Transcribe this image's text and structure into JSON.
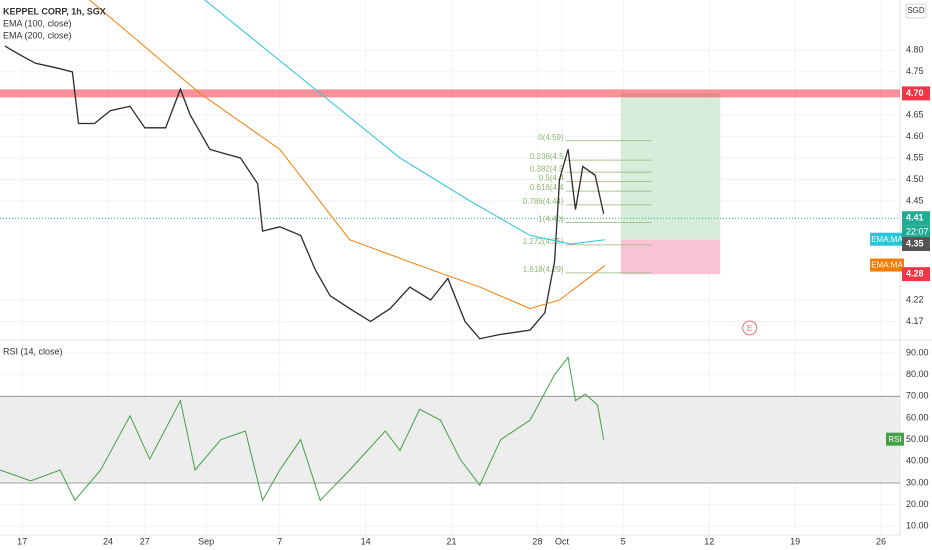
{
  "chart_data": [
    {
      "type": "line",
      "title": "KEPPEL CORP, 1h, SGX",
      "currency": "SGD",
      "xlim": [
        -1.8,
        71.55
      ],
      "ylim": [
        4.127,
        4.917
      ],
      "xticks": [
        {
          "value": 0,
          "label": "17"
        },
        {
          "value": 7,
          "label": "24"
        },
        {
          "value": 10,
          "label": "27"
        },
        {
          "value": 15,
          "label": "Sep"
        },
        {
          "value": 21,
          "label": "7"
        },
        {
          "value": 28,
          "label": "14"
        },
        {
          "value": 35,
          "label": "21"
        },
        {
          "value": 42,
          "label": "28"
        },
        {
          "value": 44,
          "label": "Oct"
        },
        {
          "value": 49,
          "label": "5"
        },
        {
          "value": 56,
          "label": "12"
        },
        {
          "value": 63,
          "label": "19"
        },
        {
          "value": 70,
          "label": "26"
        }
      ],
      "yticks": [
        4.17,
        4.22,
        4.45,
        {
          "value": 4.5,
          "label": "4.50"
        },
        4.55,
        {
          "value": 4.6,
          "label": "4.60"
        },
        4.65,
        4.75,
        {
          "value": 4.8,
          "label": "4.80"
        }
      ],
      "series": [
        {
          "color": "#2b2b2b",
          "x": [
            -1.4,
            -0.2,
            1.1,
            2.7,
            4.1,
            4.6,
            5.9,
            7.2,
            8.8,
            10.0,
            11.7,
            12.9,
            13.7,
            15.3,
            16.5,
            17.8,
            19.2,
            19.6,
            21.0,
            22.7,
            23.9,
            25.1,
            26.7,
            28.4,
            30.0,
            31.6,
            33.3,
            34.7,
            36.1,
            37.3,
            39.0,
            41.4,
            42.6,
            43.4,
            43.8,
            44.5,
            45.1,
            45.7,
            46.7,
            47.4
          ],
          "values": [
            4.81,
            4.79,
            4.77,
            4.76,
            4.75,
            4.63,
            4.63,
            4.66,
            4.67,
            4.62,
            4.62,
            4.71,
            4.65,
            4.57,
            4.56,
            4.55,
            4.49,
            4.38,
            4.39,
            4.37,
            4.29,
            4.23,
            4.2,
            4.17,
            4.2,
            4.25,
            4.22,
            4.27,
            4.17,
            4.13,
            4.14,
            4.15,
            4.19,
            4.31,
            4.5,
            4.57,
            4.43,
            4.53,
            4.51,
            4.42
          ]
        },
        {
          "name": "EMA (100, close)",
          "color": "#26c6da",
          "end_label": "EMA:MA",
          "x": [
            14.9,
            24.3,
            30.8,
            36.5,
            41.4,
            44.7,
            47.5
          ],
          "values": [
            4.917,
            4.7,
            4.55,
            4.45,
            4.37,
            4.35,
            4.36
          ]
        },
        {
          "name": "EMA (200, close)",
          "color": "#f57c00",
          "end_label": "EMA:MA",
          "x": [
            5.5,
            14.5,
            21.0,
            26.7,
            32.4,
            37.3,
            41.4,
            43.8,
            47.5
          ],
          "values": [
            4.917,
            4.7,
            4.57,
            4.36,
            4.3,
            4.25,
            4.2,
            4.22,
            4.3
          ]
        }
      ],
      "price_labels": [
        {
          "value": 4.7,
          "label": "4.70",
          "color": "#f23645",
          "band": true
        },
        {
          "value": 4.41,
          "label": "4.41",
          "color": "#22ab94",
          "dotted": true,
          "countdown": "22:07"
        },
        {
          "value": 4.35,
          "label": "4.35",
          "color": "#555555"
        },
        {
          "value": 4.28,
          "label": "4.28",
          "color": "#f23645"
        }
      ],
      "fib": {
        "x": [
          44.3,
          51.3
        ],
        "color": "#8fb573",
        "levels": [
          {
            "label": "0(4.59)",
            "value": 4.59
          },
          {
            "label": "0.236(4.5",
            "value": 4.545
          },
          {
            "label": "0.382(4.5",
            "value": 4.517
          },
          {
            "label": "0.5(4.4",
            "value": 4.495
          },
          {
            "label": "0.618(4.4",
            "value": 4.473
          },
          {
            "label": "0.786(4.44)",
            "value": 4.441
          },
          {
            "label": "1(4.40)",
            "value": 4.4
          },
          {
            "label": "1.272(4.35)",
            "value": 4.348
          },
          {
            "label": "1.618(4.29)",
            "value": 4.283
          }
        ]
      },
      "position": {
        "x": [
          48.8,
          56.9
        ],
        "target": 4.7,
        "entry": 4.36,
        "stop": 4.28
      },
      "event": {
        "label": "E",
        "x": 59.3,
        "y": 4.155
      }
    },
    {
      "type": "line",
      "title": "RSI (14, close)",
      "ylim": [
        6,
        96
      ],
      "yticks": [
        {
          "value": 10,
          "label": "10.00"
        },
        {
          "value": 20,
          "label": "20.00"
        },
        {
          "value": 30,
          "label": "30.00"
        },
        {
          "value": 40,
          "label": "40.00"
        },
        {
          "value": 50,
          "label": "50.00"
        },
        {
          "value": 60,
          "label": "60.00"
        },
        {
          "value": 70,
          "label": "70.00"
        },
        {
          "value": 80,
          "label": "80.00"
        },
        {
          "value": 90,
          "label": "90.00"
        }
      ],
      "band": [
        30,
        70
      ],
      "series": [
        {
          "name": "RSI",
          "color": "#43a047",
          "x": [
            -1.8,
            0.7,
            3.1,
            4.3,
            6.4,
            8.8,
            10.4,
            12.9,
            14.1,
            16.2,
            18.2,
            19.6,
            21.0,
            22.7,
            24.3,
            26.7,
            29.6,
            30.8,
            32.4,
            34.1,
            35.7,
            37.3,
            39.0,
            41.4,
            43.4,
            44.5,
            45.1,
            45.9,
            46.9,
            47.4
          ],
          "values": [
            36,
            31,
            36,
            22,
            36,
            61,
            41,
            68,
            36,
            50,
            54,
            22,
            36,
            50,
            22,
            36,
            54,
            45,
            64,
            59,
            41,
            29,
            50,
            59,
            80,
            88,
            68,
            71,
            66,
            50
          ]
        }
      ]
    }
  ]
}
